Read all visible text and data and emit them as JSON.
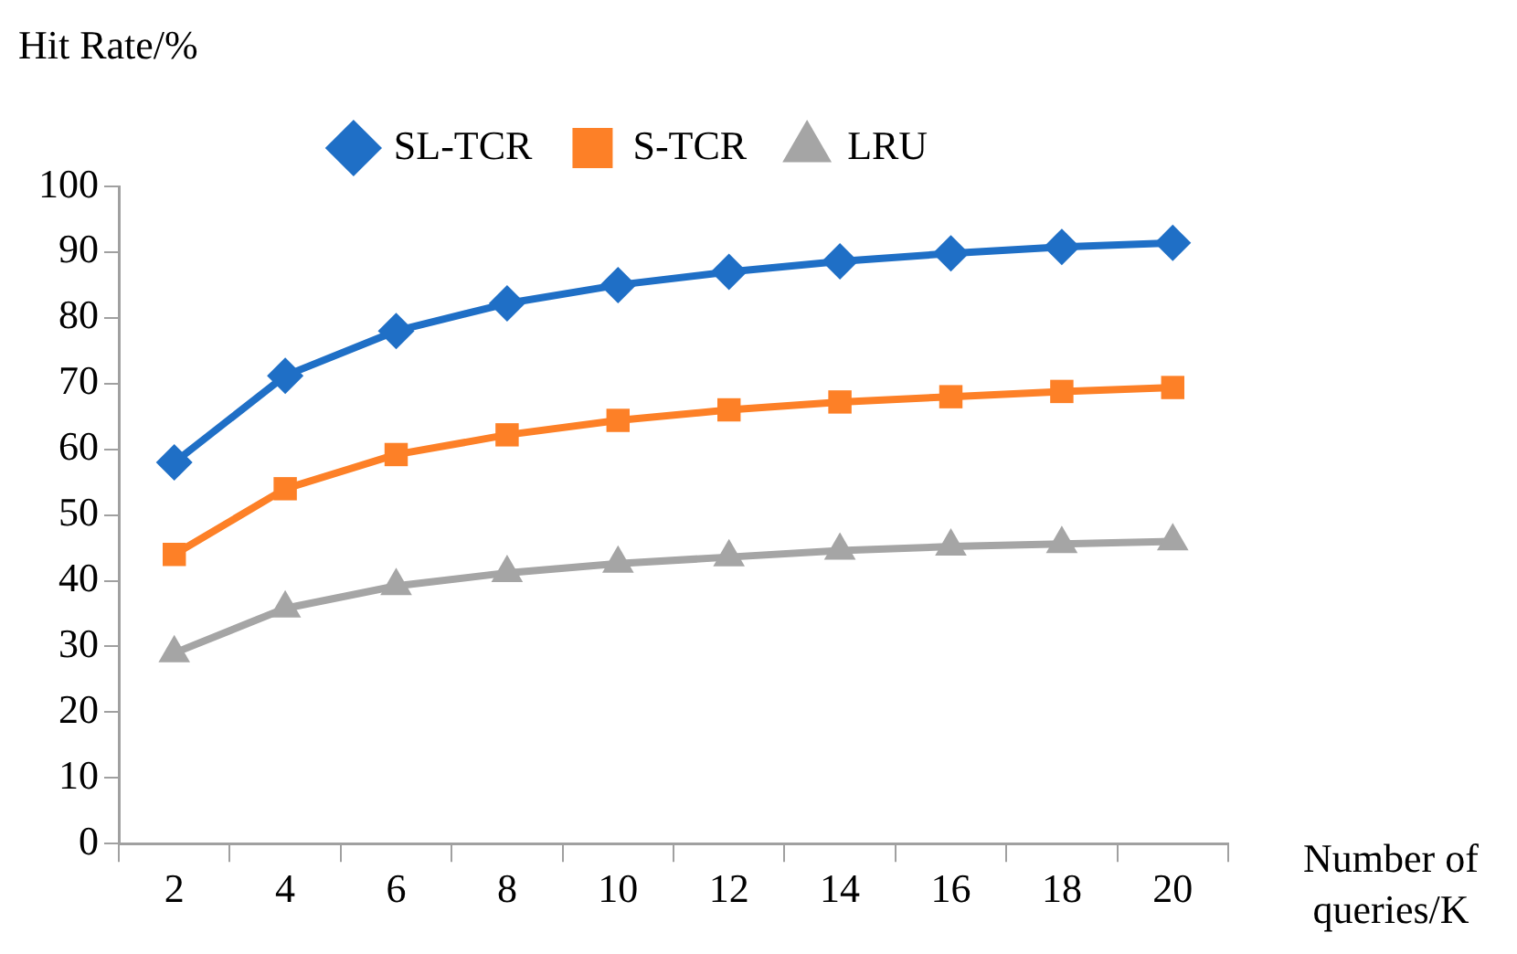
{
  "chart_data": {
    "type": "line",
    "ylabel": "Hit Rate/%",
    "xlabel": "Number of queries/K",
    "categories": [
      "2",
      "4",
      "6",
      "8",
      "10",
      "12",
      "14",
      "16",
      "18",
      "20"
    ],
    "series": [
      {
        "name": "SL-TCR",
        "color": "#1f6fc6",
        "marker": "diamond",
        "values": [
          58,
          71.2,
          78,
          82.2,
          85,
          87,
          88.6,
          89.8,
          90.8,
          91.4
        ]
      },
      {
        "name": "S-TCR",
        "color": "#fd8027",
        "marker": "square",
        "values": [
          44,
          54,
          59.2,
          62.2,
          64.4,
          66,
          67.2,
          68,
          68.8,
          69.4
        ]
      },
      {
        "name": "LRU",
        "color": "#a5a5a5",
        "marker": "triangle",
        "values": [
          29,
          35.8,
          39.2,
          41.2,
          42.6,
          43.6,
          44.6,
          45.2,
          45.6,
          46
        ]
      }
    ],
    "ylim": [
      0,
      100
    ],
    "yticks": [
      0,
      10,
      20,
      30,
      40,
      50,
      60,
      70,
      80,
      90,
      100
    ],
    "grid": false,
    "legend": "top",
    "line_style": "solid"
  }
}
